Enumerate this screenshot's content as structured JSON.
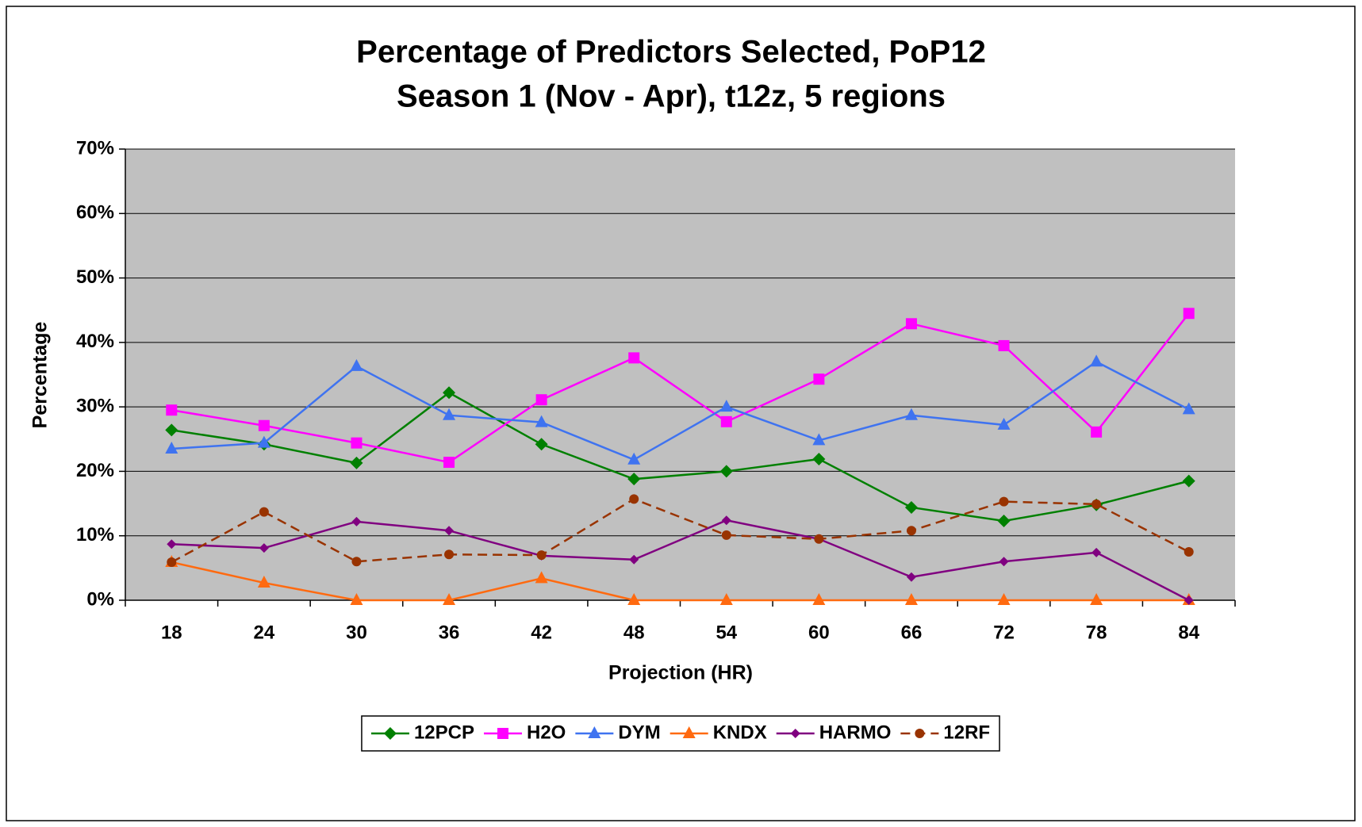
{
  "chart_data": {
    "type": "line",
    "title": "Percentage of Predictors Selected, PoP12",
    "subtitle": "Season 1 (Nov - Apr), t12z, 5 regions",
    "x_label": "Projection (HR)",
    "y_label": "Percentage",
    "categories": [
      "18",
      "24",
      "30",
      "36",
      "42",
      "48",
      "54",
      "60",
      "66",
      "72",
      "78",
      "84"
    ],
    "ylim": [
      0,
      70
    ],
    "yticks": [
      {
        "value": 0,
        "label": "0%"
      },
      {
        "value": 10,
        "label": "10%"
      },
      {
        "value": 20,
        "label": "20%"
      },
      {
        "value": 30,
        "label": "30%"
      },
      {
        "value": 40,
        "label": "40%"
      },
      {
        "value": 50,
        "label": "50%"
      },
      {
        "value": 60,
        "label": "60%"
      },
      {
        "value": 70,
        "label": "70%"
      }
    ],
    "grid": true,
    "legend": "bottom",
    "series": [
      {
        "name": "12PCP",
        "color": "#008000",
        "marker": "diamond",
        "values": [
          26.4,
          24.2,
          21.3,
          32.2,
          24.2,
          18.8,
          20.0,
          21.9,
          14.4,
          12.3,
          14.8,
          18.5
        ]
      },
      {
        "name": "H2O",
        "color": "#ff00ff",
        "marker": "square",
        "values": [
          29.5,
          27.1,
          24.4,
          21.4,
          31.1,
          37.6,
          27.7,
          34.3,
          42.9,
          39.5,
          26.1,
          44.5
        ]
      },
      {
        "name": "DYM",
        "color": "#3f73f0",
        "marker": "triangle",
        "values": [
          23.5,
          24.4,
          36.3,
          28.7,
          27.6,
          21.8,
          30.0,
          24.8,
          28.7,
          27.2,
          37.0,
          29.6
        ]
      },
      {
        "name": "KNDX",
        "color": "#ff6a10",
        "marker": "triangle",
        "values": [
          5.9,
          2.7,
          0,
          0,
          3.4,
          0,
          0,
          0,
          0,
          0,
          0,
          0
        ]
      },
      {
        "name": "HARMO",
        "color": "#800080",
        "marker": "small-diamond",
        "values": [
          8.7,
          8.1,
          12.2,
          10.8,
          6.9,
          6.3,
          12.4,
          9.5,
          3.6,
          6.0,
          7.4,
          0
        ]
      },
      {
        "name": "12RF",
        "color": "#993300",
        "marker": "circle",
        "dashed": true,
        "values": [
          5.9,
          13.7,
          6.0,
          7.1,
          7.0,
          15.7,
          10.1,
          9.5,
          10.8,
          15.3,
          14.9,
          7.5
        ]
      }
    ]
  }
}
